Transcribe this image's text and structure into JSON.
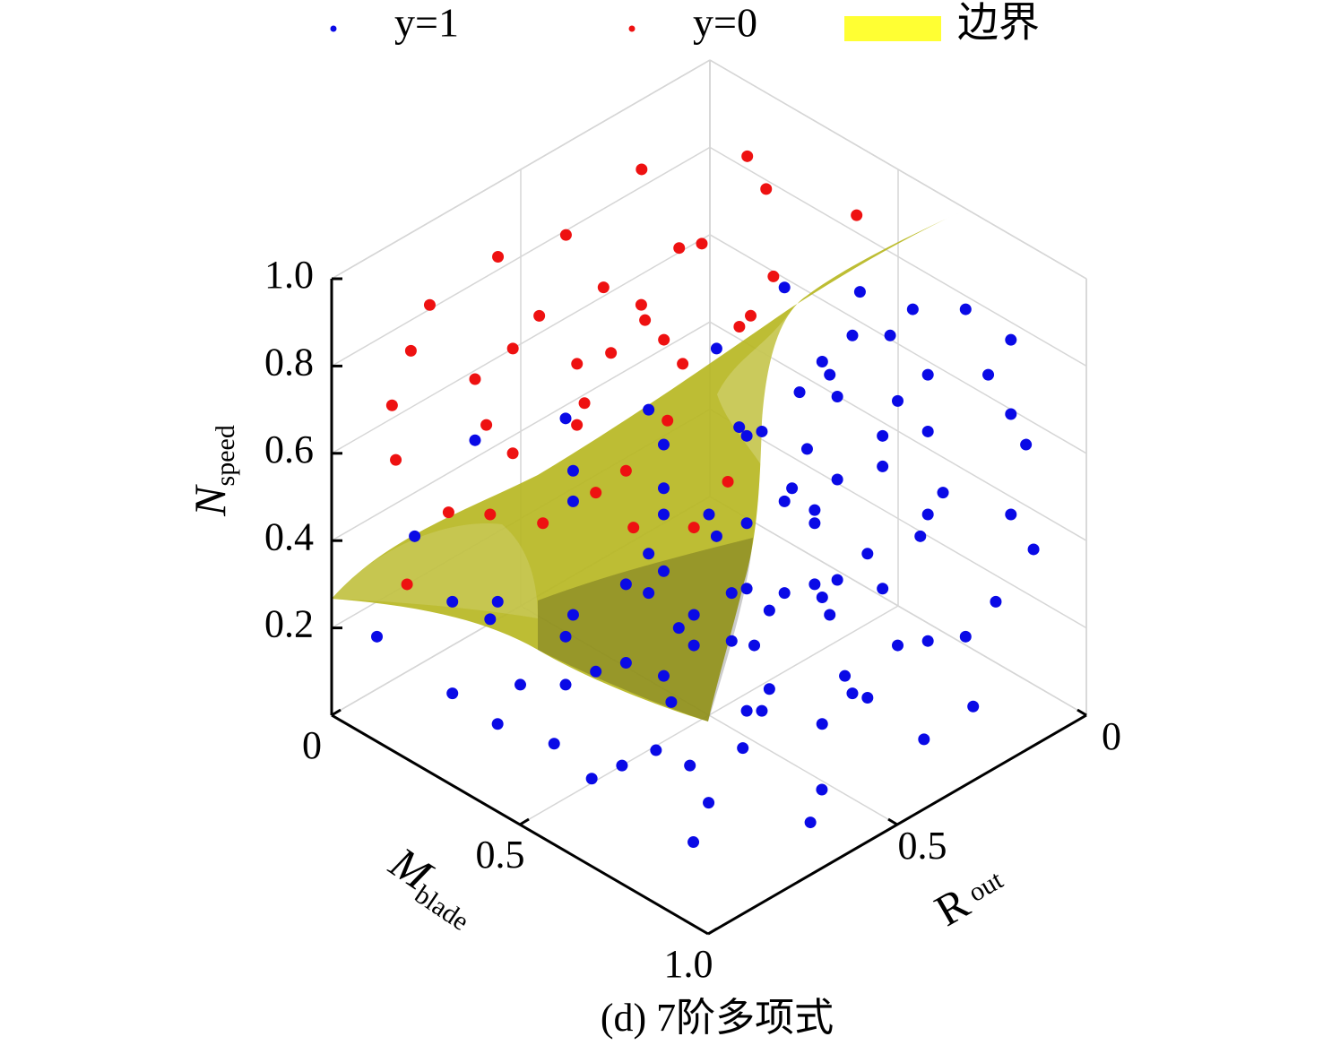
{
  "chart_data": {
    "type": "scatter3d",
    "title": "(d) 7阶多项式",
    "xlabel": {
      "text": "M",
      "sub": "blade"
    },
    "ylabel": {
      "text": "R",
      "sub": "out"
    },
    "zlabel": {
      "text": "N",
      "sub": "speed"
    },
    "xlim": [
      0,
      1
    ],
    "ylim": [
      0,
      1
    ],
    "zlim": [
      0,
      1
    ],
    "xticks": [
      0,
      0.5,
      {
        "value": 1,
        "label": "1.0"
      }
    ],
    "yticks": [
      0,
      0.5
    ],
    "zticks": [
      0.2,
      0.4,
      0.6,
      0.8,
      {
        "value": 1,
        "label": "1.0"
      }
    ],
    "grid": true,
    "legend_position": "top",
    "series": [
      {
        "name": "y=1",
        "color": "#0a0ae6",
        "x": [
          0.6,
          0.7,
          0.77,
          0.84,
          0.9,
          0.74,
          0.69,
          0.51,
          0.65,
          0.66,
          0.79,
          0.87,
          0.62,
          0.67,
          0.75,
          0.9,
          0.42,
          0.31,
          0.19,
          0.54,
          0.55,
          0.57,
          0.79,
          0.73,
          0.92,
          0.63,
          0.73,
          0.67,
          0.61,
          0.81,
          0.6,
          0.64,
          0.9,
          0.79,
          0.64,
          0.78,
          0.71,
          0.93,
          0.67,
          0.64,
          0.73,
          0.55,
          0.6,
          0.53,
          0.65,
          0.88,
          0.58,
          0.66,
          0.06,
          0.31,
          0.53,
          0.75,
          0.79,
          0.84,
          0.56,
          0.68,
          0.58,
          0.16,
          0.25,
          0.31,
          0.69,
          0.71,
          0.85,
          0.45,
          0.46,
          0.55,
          0.57,
          0.26,
          0.69,
          0.86,
          0.38,
          0.64,
          0.53,
          0.52,
          0.61,
          0.51,
          0.84,
          0.72,
          0.9,
          0.79,
          0.11,
          0.16,
          0.22,
          0.21,
          0.32,
          0.44,
          0.44,
          0.32,
          0.44,
          0.5,
          0.51,
          0.55,
          0.42,
          0.44,
          0.39,
          0.42,
          0.48,
          0.32,
          0.35,
          0.44,
          0.39,
          0.48
        ],
        "y": [
          0.4,
          0.3,
          0.23,
          0.16,
          0.1,
          0.26,
          0.31,
          0.49,
          0.35,
          0.34,
          0.21,
          0.13,
          0.38,
          0.33,
          0.25,
          0.1,
          0.58,
          0.69,
          0.81,
          0.46,
          0.45,
          0.43,
          0.21,
          0.27,
          0.08,
          0.37,
          0.27,
          0.33,
          0.39,
          0.19,
          0.4,
          0.36,
          0.1,
          0.21,
          0.36,
          0.22,
          0.29,
          0.07,
          0.33,
          0.36,
          0.27,
          0.45,
          0.4,
          0.47,
          0.35,
          0.12,
          0.42,
          0.34,
          0.94,
          0.69,
          0.47,
          0.25,
          0.21,
          0.16,
          0.44,
          0.32,
          0.42,
          0.84,
          0.75,
          0.69,
          0.31,
          0.29,
          0.15,
          0.55,
          0.54,
          0.45,
          0.43,
          0.82,
          0.39,
          0.29,
          0.79,
          0.55,
          0.67,
          0.75,
          0.66,
          0.82,
          0.54,
          0.72,
          0.63,
          0.83,
          0.89,
          0.84,
          0.78,
          0.79,
          0.68,
          0.56,
          0.56,
          0.68,
          0.56,
          0.5,
          0.49,
          0.45,
          0.58,
          0.56,
          0.61,
          0.58,
          0.52,
          0.68,
          0.65,
          0.56,
          0.61,
          0.52
        ],
        "z": [
          0.98,
          0.97,
          0.93,
          0.93,
          0.86,
          0.87,
          0.87,
          0.84,
          0.81,
          0.78,
          0.78,
          0.78,
          0.74,
          0.73,
          0.72,
          0.69,
          0.7,
          0.68,
          0.63,
          0.66,
          0.64,
          0.65,
          0.65,
          0.64,
          0.62,
          0.61,
          0.57,
          0.54,
          0.52,
          0.51,
          0.49,
          0.47,
          0.46,
          0.46,
          0.44,
          0.41,
          0.37,
          0.38,
          0.31,
          0.3,
          0.29,
          0.29,
          0.28,
          0.28,
          0.27,
          0.26,
          0.24,
          0.23,
          0.18,
          0.18,
          0.17,
          0.16,
          0.17,
          0.18,
          0.16,
          0.09,
          0.06,
          0.05,
          0.07,
          0.07,
          0.05,
          0.04,
          0.02,
          0.03,
          0.2,
          0.01,
          0.01,
          0.02,
          0.02,
          0.02,
          0.02,
          0.02,
          0.02,
          0.02,
          0.02,
          0.02,
          0.02,
          0.02,
          0.02,
          0.02,
          0.41,
          0.26,
          0.26,
          0.22,
          0.56,
          0.62,
          0.52,
          0.49,
          0.46,
          0.46,
          0.41,
          0.44,
          0.37,
          0.33,
          0.3,
          0.28,
          0.23,
          0.23,
          0.1,
          0.09,
          0.12,
          0.16
        ]
      },
      {
        "name": "y=0",
        "color": "#ee1111",
        "x": [
          0.11,
          0.25,
          0.28,
          0.11,
          0.07,
          0.45,
          0.29,
          0.26,
          0.13,
          0.23,
          0.26,
          0.31,
          0.32,
          0.44,
          0.11,
          0.19,
          0.34,
          0.44,
          0.46,
          0.32,
          0.28,
          0.42,
          0.19,
          0.08,
          0.34,
          0.33,
          0.21,
          0.09,
          0.24,
          0.39,
          0.53,
          0.21,
          0.33,
          0.45,
          0.15,
          0.45,
          0.35,
          0.21,
          0.48
        ],
        "y": [
          0.29,
          0.15,
          0.13,
          0.49,
          0.63,
          0.06,
          0.31,
          0.34,
          0.87,
          0.68,
          0.54,
          0.49,
          0.49,
          0.27,
          0.9,
          0.71,
          0.46,
          0.36,
          0.35,
          0.58,
          0.63,
          0.49,
          0.81,
          0.92,
          0.67,
          0.68,
          0.8,
          0.92,
          0.76,
          0.61,
          0.48,
          0.9,
          0.77,
          0.65,
          0.95,
          0.56,
          0.65,
          0.79,
          0.52
        ],
        "z": [
          0.95,
          0.98,
          0.91,
          0.9,
          0.9,
          0.9,
          0.88,
          0.87,
          0.94,
          0.87,
          0.88,
          0.84,
          0.81,
          0.86,
          0.84,
          0.79,
          0.76,
          0.79,
          0.82,
          0.78,
          0.76,
          0.76,
          0.77,
          0.71,
          0.72,
          0.67,
          0.67,
          0.59,
          0.6,
          0.56,
          0.54,
          0.52,
          0.49,
          0.48,
          0.35,
          0.68,
          0.51,
          0.46,
          0.43
        ]
      },
      {
        "name": "边界",
        "type": "surface",
        "color": "#ffff33"
      }
    ]
  }
}
